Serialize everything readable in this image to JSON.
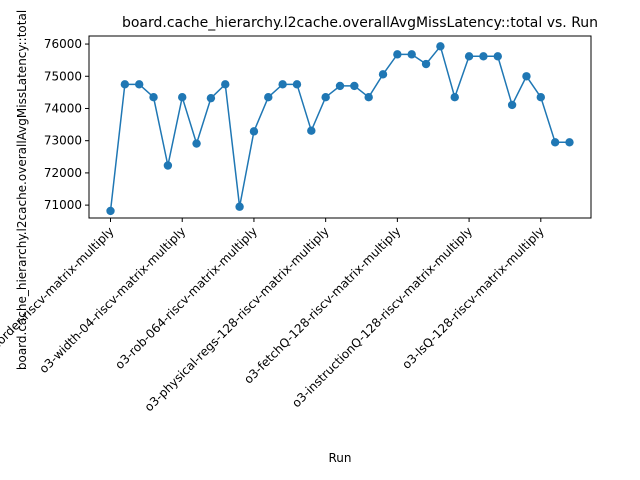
{
  "chart_data": {
    "type": "line",
    "title": "board.cache_hierarchy.l2cache.overallAvgMissLatency::total vs. Run",
    "xlabel": "Run",
    "ylabel": "board.cache_hierarchy.l2cache.overallAvgMissLatency::total",
    "ylim": [
      70600,
      76250
    ],
    "yticks": [
      71000,
      72000,
      73000,
      74000,
      75000,
      76000
    ],
    "grid": false,
    "xtick_labels": [
      "inorder-riscv-matrix-multiply",
      "o3-width-04-riscv-matrix-multiply",
      "o3-rob-064-riscv-matrix-multiply",
      "o3-physical-regs-128-riscv-matrix-multiply",
      "o3-fetchQ-128-riscv-matrix-multiply",
      "o3-instructionQ-128-riscv-matrix-multiply",
      "o3-lsQ-128-riscv-matrix-multiply"
    ],
    "xtick_positions": [
      0,
      5,
      10,
      15,
      20,
      25,
      30
    ],
    "series": [
      {
        "color": "#1f77b4",
        "x": [
          0,
          1,
          2,
          3,
          4,
          5,
          6,
          7,
          8,
          9,
          10,
          11,
          12,
          13,
          14,
          15,
          16,
          17,
          18,
          19,
          20,
          21,
          22,
          23,
          24,
          25,
          26,
          27,
          28,
          29,
          30,
          31,
          32
        ],
        "values": [
          70820,
          74750,
          74750,
          74350,
          72230,
          74350,
          72910,
          74320,
          74750,
          70950,
          73290,
          74350,
          74750,
          74750,
          73310,
          74350,
          74700,
          74700,
          74350,
          75060,
          75680,
          75680,
          75380,
          75930,
          74350,
          75620,
          75620,
          75620,
          74110,
          75000,
          74350,
          72950,
          72950
        ]
      }
    ]
  }
}
